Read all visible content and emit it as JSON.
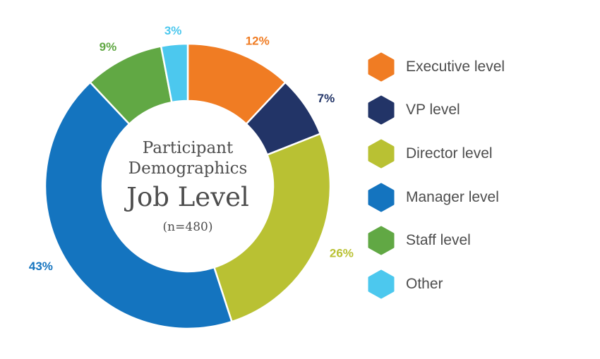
{
  "chart_data": {
    "type": "pie",
    "title_line1": "Participant",
    "title_line2": "Demographics",
    "title_main": "Job Level",
    "sample_size": "(n=480)",
    "slices": [
      {
        "name": "Executive level",
        "value": 12,
        "label": "12%",
        "color": "#f07c23"
      },
      {
        "name": "VP level",
        "value": 7,
        "label": "7%",
        "color": "#223467"
      },
      {
        "name": "Director level",
        "value": 26,
        "label": "26%",
        "color": "#b9c133"
      },
      {
        "name": "Manager level",
        "value": 43,
        "label": "43%",
        "color": "#1474bf"
      },
      {
        "name": "Staff level",
        "value": 9,
        "label": "9%",
        "color": "#61a844"
      },
      {
        "name": "Other",
        "value": 3,
        "label": "3%",
        "color": "#4cc8ee"
      }
    ]
  }
}
